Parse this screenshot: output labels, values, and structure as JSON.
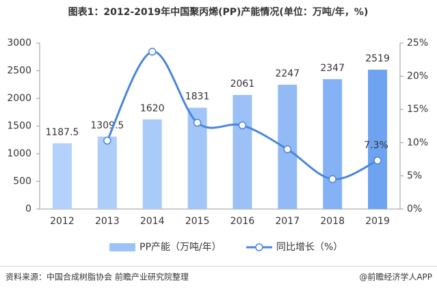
{
  "chart_data": {
    "type": "bar-line",
    "title": "图表1：2012-2019年中国聚丙烯(PP)产能情况(单位：万吨/年，%)",
    "categories": [
      "2012",
      "2013",
      "2014",
      "2015",
      "2016",
      "2017",
      "2018",
      "2019"
    ],
    "series": [
      {
        "name": "PP产能（万吨/年）",
        "type": "bar",
        "color": "#9cc3f7",
        "colors": [
          "#b3d1fa",
          "#aecefa",
          "#a8cbf9",
          "#a2c6f8",
          "#9bc1f7",
          "#92bbf6",
          "#85b2f5",
          "#6ea3f2"
        ],
        "values": [
          1187.5,
          1309.5,
          1620,
          1831,
          2061,
          2247,
          2347,
          2519
        ]
      },
      {
        "name": "同比增长（%）",
        "type": "line",
        "axis": "y2",
        "color": "#4a86d8",
        "values": [
          null,
          10.3,
          23.7,
          13.0,
          12.6,
          9.0,
          4.5,
          7.3
        ],
        "value_labels": [
          null,
          null,
          null,
          null,
          null,
          null,
          null,
          "7.3%"
        ]
      }
    ],
    "ylim": [
      0,
      3000
    ],
    "yticks": [
      0,
      500,
      1000,
      1500,
      2000,
      2500,
      3000
    ],
    "y2lim": [
      0,
      25
    ],
    "y2ticks": [
      {
        "value": 0,
        "label": "0%"
      },
      {
        "value": 5,
        "label": "5%"
      },
      {
        "value": 10,
        "label": "10%"
      },
      {
        "value": 15,
        "label": "15%"
      },
      {
        "value": 20,
        "label": "20%"
      },
      {
        "value": 25,
        "label": "25%"
      }
    ],
    "legend": "bottom",
    "source": "资料来源：中国合成树脂协会 前瞻产业研究院整理",
    "credit": "@前瞻经济学人APP"
  }
}
